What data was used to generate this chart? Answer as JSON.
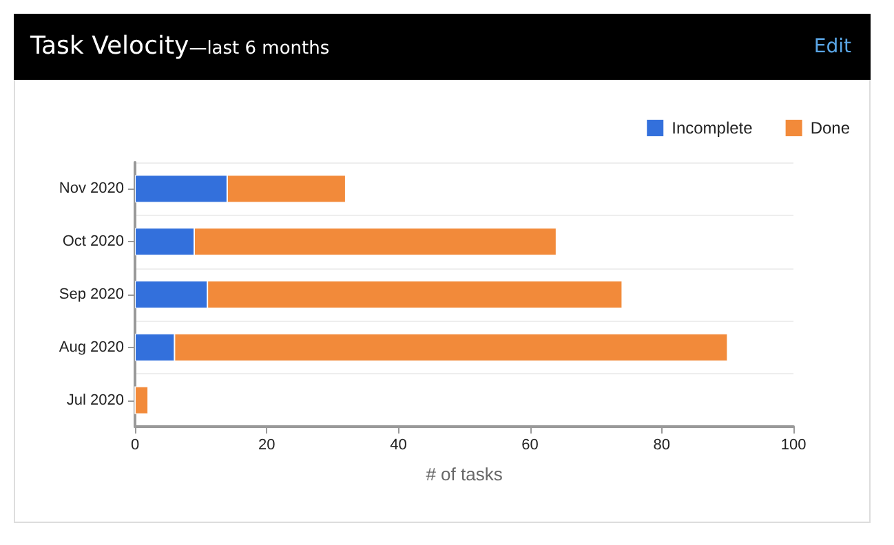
{
  "chart_data": {
    "type": "bar",
    "orientation": "horizontal",
    "stacked": true,
    "title": "Task Velocity",
    "subtitle": "—last 6 months",
    "annotations": [
      "Edit"
    ],
    "xlabel": "# of tasks",
    "categories": [
      "Nov 2020",
      "Oct 2020",
      "Sep 2020",
      "Aug 2020",
      "Jul 2020"
    ],
    "series": [
      {
        "name": "Incomplete",
        "color": "#3370dc",
        "values": [
          14,
          9,
          11,
          6,
          0
        ]
      },
      {
        "name": "Done",
        "color": "#f28a3a",
        "values": [
          18,
          55,
          63,
          84,
          2
        ]
      }
    ],
    "xlim": [
      0,
      100
    ],
    "xticks": [
      0,
      20,
      40,
      60,
      80,
      100
    ],
    "grid": "y",
    "legend": "top right"
  }
}
